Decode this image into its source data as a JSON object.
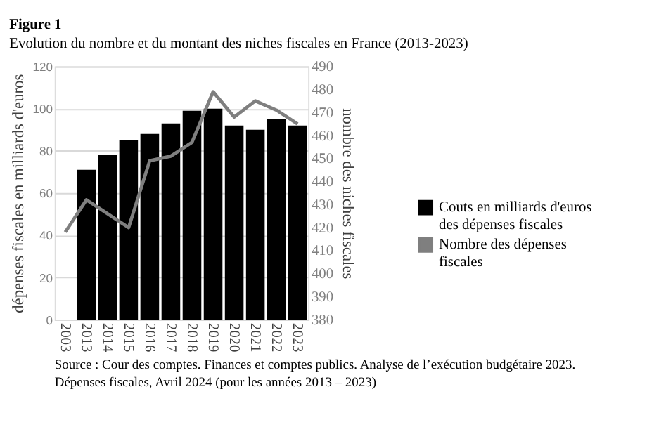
{
  "chart_data": {
    "type": "bar",
    "title": "Figure 1",
    "subtitle": "Evolution du nombre et du montant des niches fiscales en France (2013-2023)",
    "categories": [
      "2003",
      "2013",
      "2014",
      "2015",
      "2016",
      "2017",
      "2018",
      "2019",
      "2020",
      "2021",
      "2022",
      "2023"
    ],
    "series": [
      {
        "name": "Couts en milliards d'euros des dépenses fiscales",
        "color": "#000000",
        "values": [
          null,
          71,
          78,
          85,
          88,
          93,
          99,
          100,
          92,
          90,
          95,
          92
        ]
      },
      {
        "name": "Nombre des dépenses fiscales",
        "type": "line",
        "axis": "y2",
        "color": "#7f7f7f",
        "values": [
          418,
          432,
          426,
          420,
          449,
          451,
          457,
          479,
          468,
          475,
          471,
          465
        ]
      }
    ],
    "ylabel": "dépenses fiscales en milliards d'euros",
    "y2label": "nombre des niches fiscales",
    "ylim": [
      0,
      120
    ],
    "yticks": [
      0,
      20,
      40,
      60,
      80,
      100,
      120
    ],
    "y2lim": [
      380,
      490
    ],
    "y2ticks": [
      380,
      390,
      400,
      410,
      420,
      430,
      440,
      450,
      460,
      470,
      480,
      490
    ],
    "grid": "y",
    "legend": "right",
    "marker": "none",
    "line_style": "solid",
    "annotations": [
      "Source : Cour des comptes. Finances et comptes publics. Analyse de l’exécution budgétaire 2023. Dépenses fiscales, Avril 2024 (pour les années 2013 – 2023)"
    ]
  }
}
